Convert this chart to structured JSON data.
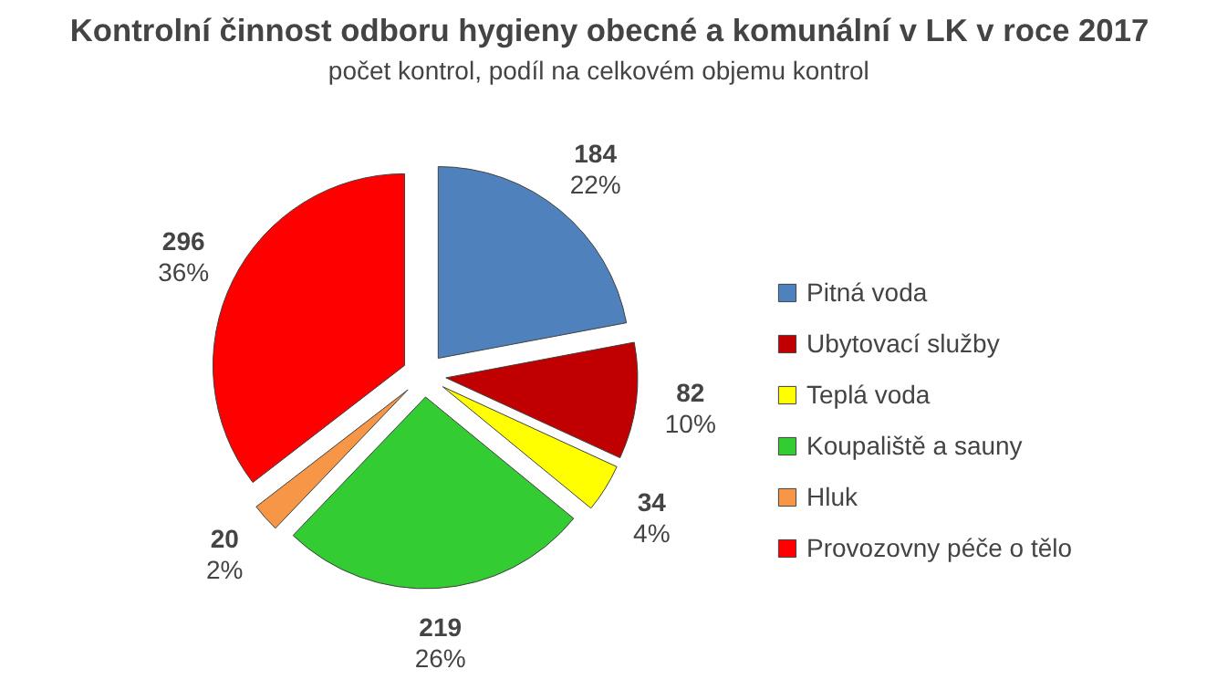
{
  "chart_data": {
    "type": "pie",
    "title": "Kontrolní činnost odboru hygieny obecné a komunální v LK v roce 2017",
    "subtitle": "počet kontrol,  podíl na celkovém  objemu  kontrol",
    "categories": [
      "Pitná voda",
      "Ubytovací služby",
      "Teplá voda",
      "Koupaliště a sauny",
      "Hluk",
      "Provozovny péče o tělo"
    ],
    "values": [
      184,
      82,
      34,
      219,
      20,
      296
    ],
    "colors": [
      "#4f81bd",
      "#c00000",
      "#ffff00",
      "#33cc33",
      "#f79646",
      "#ff0000"
    ],
    "value_labels": [
      "184\n22%",
      "82\n10%",
      "34\n4%",
      "219\n26%",
      "20\n2%",
      "296\n36%"
    ],
    "legend": "right"
  }
}
